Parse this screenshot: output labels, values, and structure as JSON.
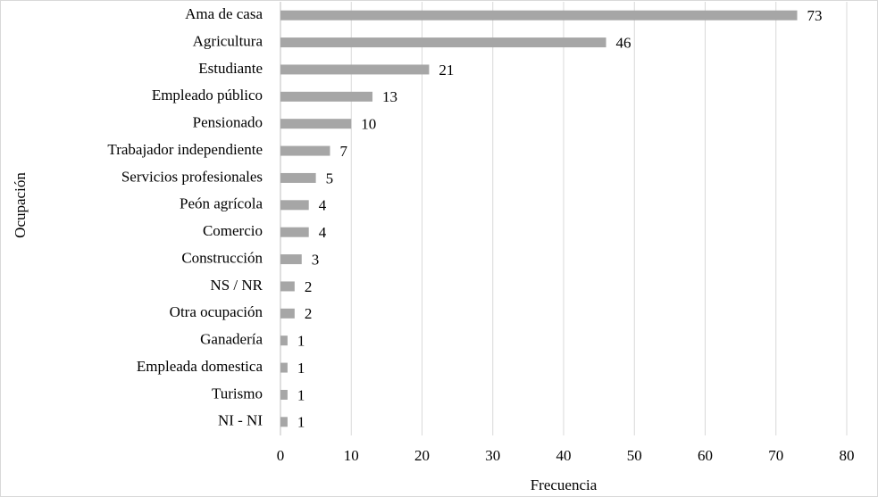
{
  "chart_data": {
    "type": "bar",
    "orientation": "horizontal",
    "xlabel": "Frecuencia",
    "ylabel": "Ocupación",
    "categories": [
      "Ama de casa",
      "Agricultura",
      "Estudiante",
      "Empleado público",
      "Pensionado",
      "Trabajador independiente",
      "Servicios profesionales",
      "Peón agrícola",
      "Comercio",
      "Construcción",
      "NS / NR",
      "Otra ocupación",
      "Ganadería",
      "Empleada domestica",
      "Turismo",
      "NI - NI"
    ],
    "values": [
      73,
      46,
      21,
      13,
      10,
      7,
      5,
      4,
      4,
      3,
      2,
      2,
      1,
      1,
      1,
      1
    ],
    "color": "#a6a6a6",
    "xlim": [
      0,
      80
    ],
    "xticks": [
      0,
      10,
      20,
      30,
      40,
      50,
      60,
      70,
      80
    ],
    "grid": true
  }
}
